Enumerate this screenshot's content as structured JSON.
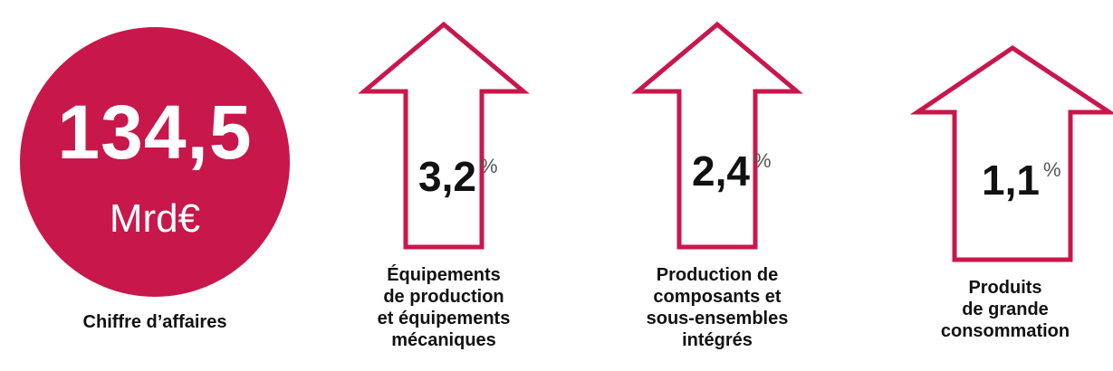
{
  "accent": "#c8174b",
  "revenue": {
    "value": "134,5",
    "unit": "Mrd€",
    "label": "Chiffre d’affaires"
  },
  "arrows": [
    {
      "value": "3,2",
      "unit": "%",
      "label_lines": [
        "Équipements",
        "de production",
        "et équipements",
        "mécaniques"
      ]
    },
    {
      "value": "2,4",
      "unit": "%",
      "label_lines": [
        "Production de",
        "composants et",
        "sous-ensembles",
        "intégrés"
      ]
    },
    {
      "value": "1,1",
      "unit": "%",
      "label_lines": [
        "Produits",
        "de grande",
        "consommation"
      ]
    }
  ]
}
